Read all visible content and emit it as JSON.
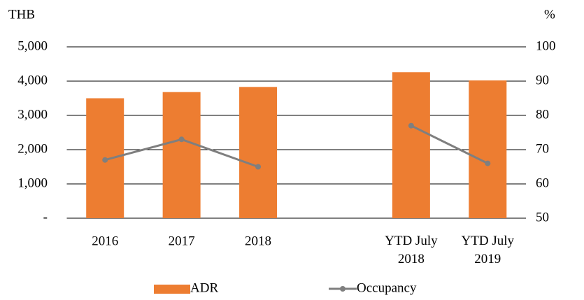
{
  "chart_data": {
    "type": "bar-line",
    "y_label": "THB",
    "y2_label": "%",
    "categories": [
      "2016",
      "2017",
      "2018",
      null,
      "YTD July 2018",
      "YTD July 2019"
    ],
    "series": [
      {
        "name": "ADR",
        "type": "bar",
        "color": "#ed7d31",
        "values": [
          3500,
          3680,
          3830,
          null,
          4260,
          4020
        ]
      },
      {
        "name": "Occupancy",
        "type": "line",
        "axis": "y2",
        "color": "#7f7f7f",
        "values": [
          67,
          73,
          65,
          null,
          77,
          66
        ]
      }
    ],
    "ylim": [
      0,
      5000
    ],
    "yticks": [
      {
        "value": 0,
        "label": "-"
      },
      {
        "value": 1000,
        "label": "1,000"
      },
      {
        "value": 2000,
        "label": "2,000"
      },
      {
        "value": 3000,
        "label": "3,000"
      },
      {
        "value": 4000,
        "label": "4,000"
      },
      {
        "value": 5000,
        "label": "5,000"
      }
    ],
    "y2lim": [
      50,
      100
    ],
    "y2ticks": [
      50,
      60,
      70,
      80,
      90,
      100
    ],
    "grid": true,
    "legend": "bottom"
  }
}
